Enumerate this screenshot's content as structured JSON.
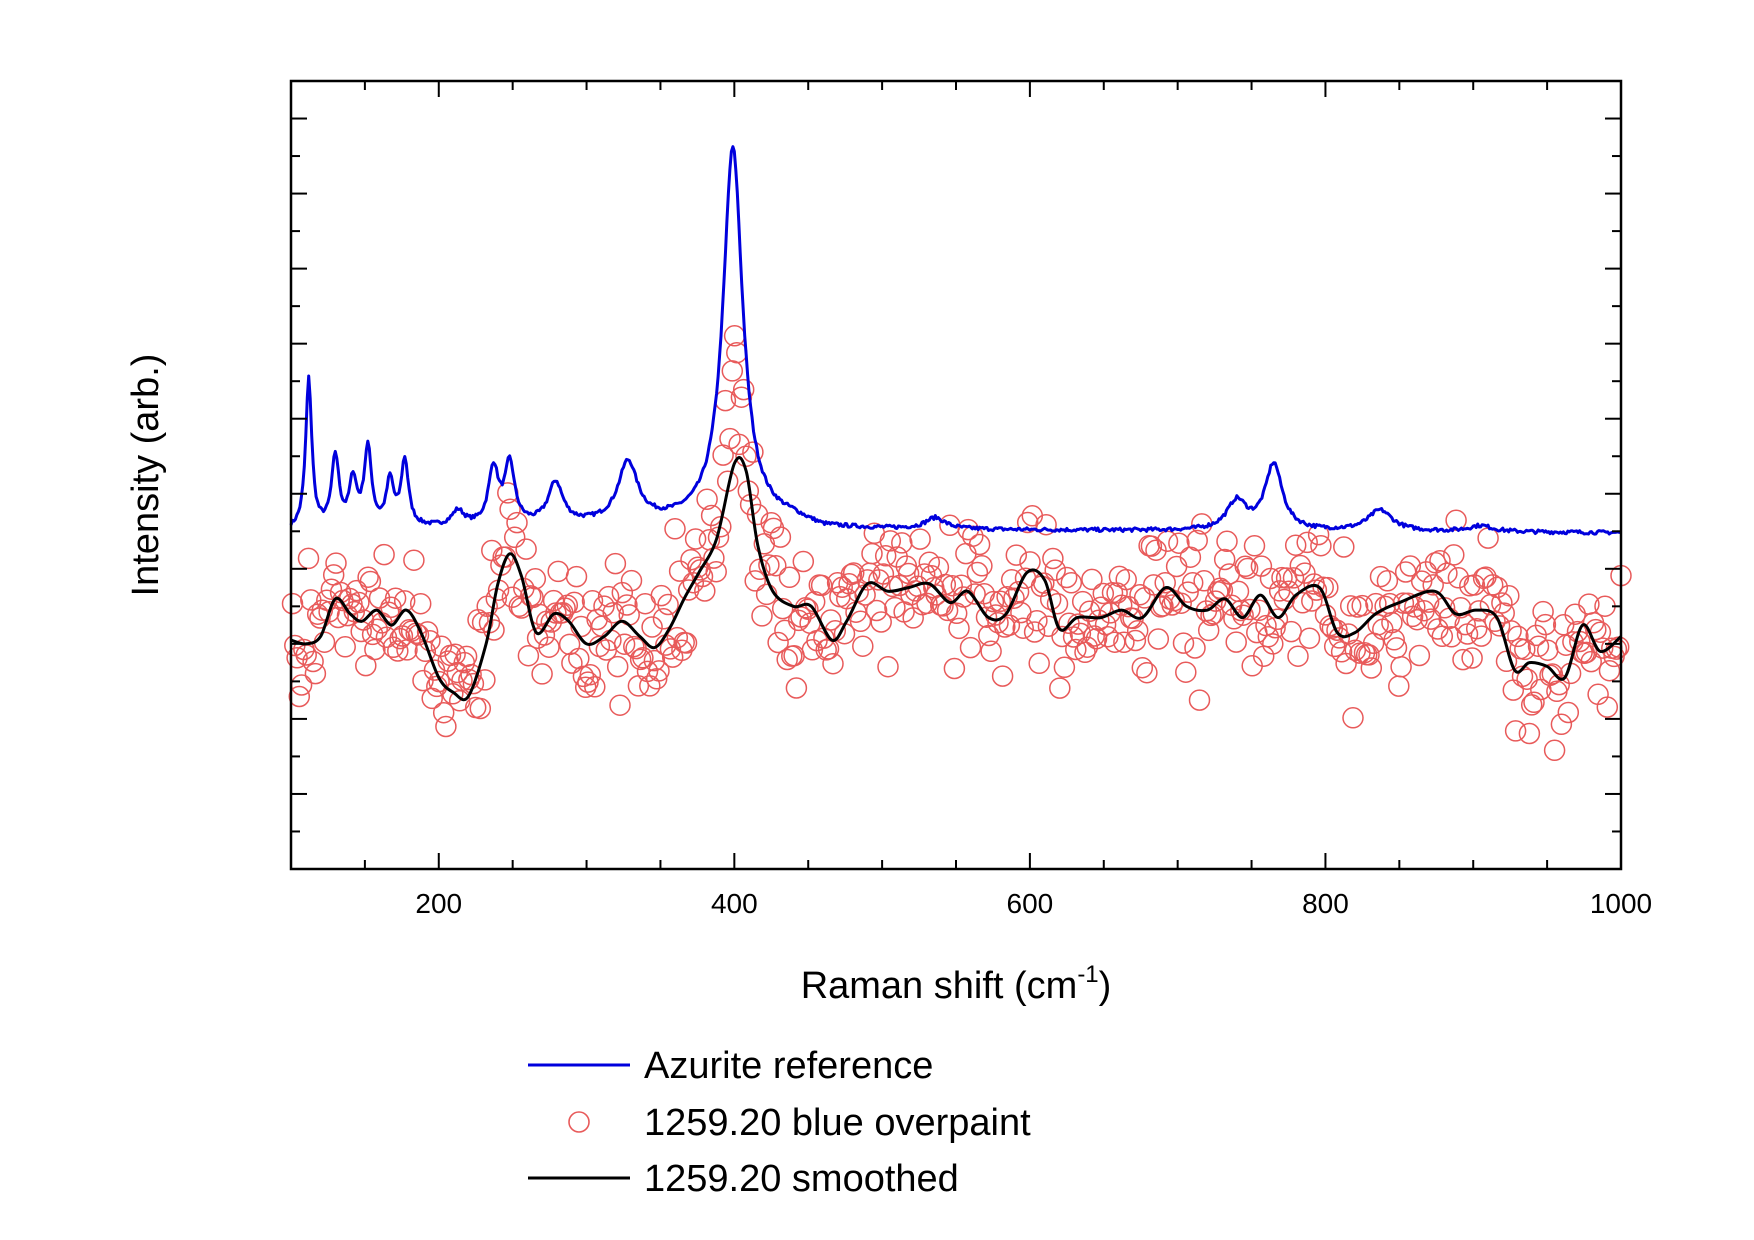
{
  "chart_data": {
    "type": "line",
    "xlabel": "Raman shift (cm",
    "xlabel_superscript": "-1",
    "xlabel_suffix": ")",
    "ylabel": "Intensity (arb.)",
    "xlim": [
      100,
      1000
    ],
    "ylim": [
      0,
      10.5
    ],
    "x_ticks": [
      200,
      400,
      600,
      800,
      1000
    ],
    "y_ticks_labeled": false,
    "grid": false,
    "legend_position": "bottom",
    "colors": {
      "reference": "#0000dd",
      "markers": "#e85a5a",
      "smoothed": "#000000"
    },
    "series": [
      {
        "name": "Azurite reference",
        "style": "line",
        "color": "#0000dd",
        "peaks": [
          {
            "x": 112,
            "h": 2.0,
            "w": 2.5
          },
          {
            "x": 130,
            "h": 0.95,
            "w": 3
          },
          {
            "x": 142,
            "h": 0.62,
            "w": 3
          },
          {
            "x": 152,
            "h": 1.05,
            "w": 3
          },
          {
            "x": 167,
            "h": 0.6,
            "w": 3
          },
          {
            "x": 177,
            "h": 0.88,
            "w": 3
          },
          {
            "x": 213,
            "h": 0.2,
            "w": 5
          },
          {
            "x": 237,
            "h": 0.75,
            "w": 4
          },
          {
            "x": 248,
            "h": 0.8,
            "w": 4
          },
          {
            "x": 279,
            "h": 0.55,
            "w": 6
          },
          {
            "x": 328,
            "h": 0.8,
            "w": 8
          },
          {
            "x": 399,
            "h": 5.0,
            "w": 8
          },
          {
            "x": 536,
            "h": 0.15,
            "w": 8
          },
          {
            "x": 740,
            "h": 0.38,
            "w": 8
          },
          {
            "x": 765,
            "h": 0.88,
            "w": 7
          },
          {
            "x": 837,
            "h": 0.28,
            "w": 10
          },
          {
            "x": 905,
            "h": 0.08,
            "w": 10
          }
        ],
        "baseline": [
          [
            100,
            4.5
          ],
          [
            380,
            4.6
          ],
          [
            440,
            4.62
          ],
          [
            460,
            4.52
          ],
          [
            1000,
            4.48
          ]
        ]
      },
      {
        "name": "1259.20 blue overpaint",
        "style": "markers",
        "color": "#e85a5a"
      },
      {
        "name": "1259.20 smoothed",
        "style": "line",
        "color": "#000000",
        "x": [
          100,
          110,
          120,
          130,
          140,
          148,
          158,
          168,
          178,
          188,
          200,
          210,
          220,
          232,
          240,
          248,
          256,
          266,
          278,
          288,
          300,
          312,
          324,
          336,
          346,
          356,
          366,
          376,
          388,
          400,
          408,
          416,
          426,
          440,
          452,
          466,
          476,
          490,
          504,
          518,
          532,
          546,
          558,
          572,
          584,
          598,
          610,
          620,
          632,
          648,
          662,
          676,
          692,
          706,
          720,
          732,
          744,
          756,
          768,
          780,
          796,
          808,
          820,
          834,
          850,
          874,
          888,
          902,
          916,
          928,
          938,
          950,
          962,
          974,
          986,
          1000
        ],
        "y": [
          3.05,
          3.0,
          3.1,
          3.6,
          3.4,
          3.3,
          3.45,
          3.25,
          3.45,
          3.15,
          2.55,
          2.35,
          2.3,
          3.0,
          3.8,
          4.2,
          3.9,
          3.15,
          3.4,
          3.3,
          3.0,
          3.1,
          3.3,
          3.1,
          2.95,
          3.2,
          3.6,
          3.95,
          4.4,
          5.4,
          5.3,
          4.3,
          3.7,
          3.5,
          3.5,
          3.05,
          3.3,
          3.8,
          3.7,
          3.75,
          3.8,
          3.55,
          3.7,
          3.35,
          3.4,
          3.95,
          3.85,
          3.2,
          3.35,
          3.35,
          3.45,
          3.35,
          3.75,
          3.5,
          3.45,
          3.6,
          3.35,
          3.65,
          3.35,
          3.65,
          3.75,
          3.15,
          3.15,
          3.4,
          3.55,
          3.7,
          3.4,
          3.45,
          3.35,
          2.65,
          2.75,
          2.7,
          2.55,
          3.25,
          2.9,
          3.1
        ]
      }
    ]
  },
  "legend": {
    "items": [
      {
        "label": "Azurite reference"
      },
      {
        "label": "1259.20 blue overpaint"
      },
      {
        "label": "1259.20 smoothed"
      }
    ]
  }
}
